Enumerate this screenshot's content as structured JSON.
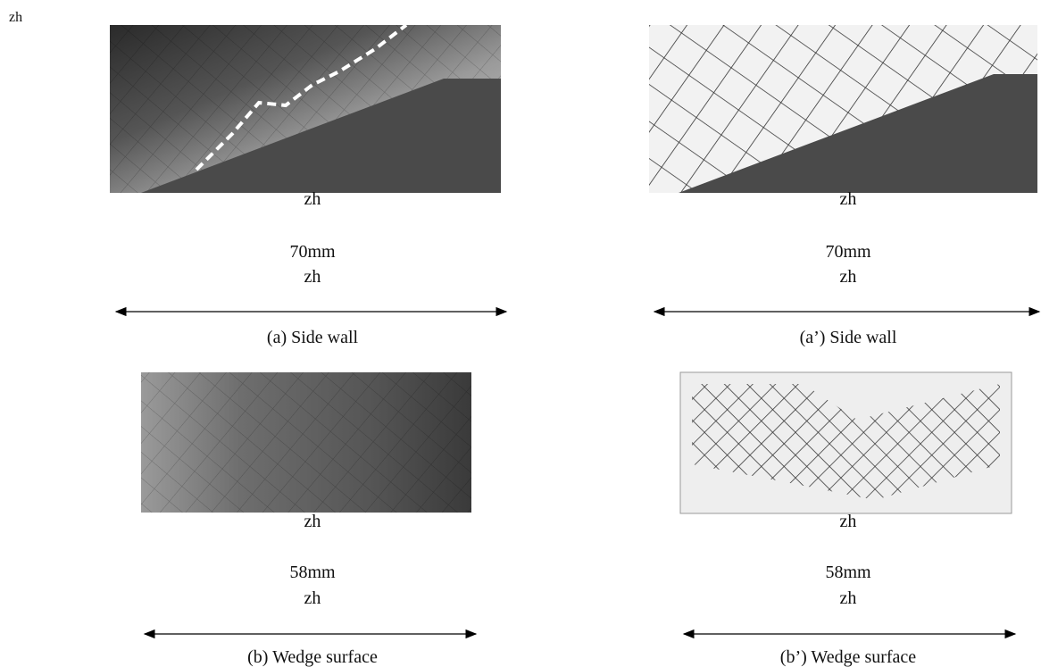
{
  "header": {
    "label": "zh"
  },
  "panels": [
    {
      "top_label": "zh",
      "dimension": "70mm",
      "mid_label": "zh",
      "caption": "(a) Side wall"
    },
    {
      "top_label": "zh",
      "dimension": "70mm",
      "mid_label": "zh",
      "caption": "(a’) Side wall"
    },
    {
      "top_label": "zh",
      "dimension": "58mm",
      "mid_label": "zh",
      "caption": "(b) Wedge surface"
    },
    {
      "top_label": "zh",
      "dimension": "58mm",
      "mid_label": "zh",
      "caption": "(b’) Wedge surface"
    }
  ]
}
